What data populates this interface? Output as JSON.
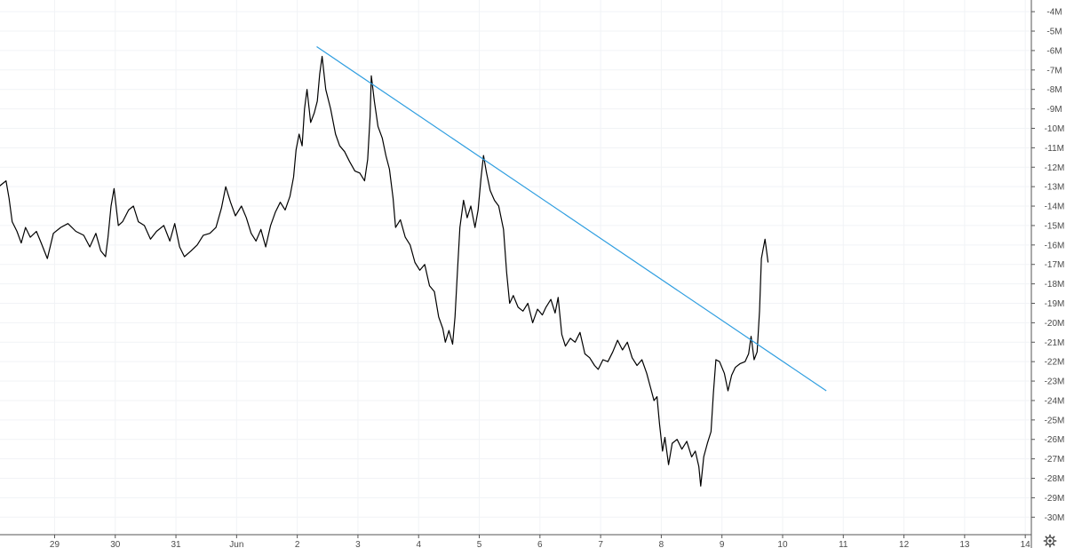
{
  "chart_data": {
    "type": "line",
    "title": "",
    "xlabel": "",
    "ylabel": "",
    "x_ticks": [
      {
        "label": "29",
        "t": 0
      },
      {
        "label": "30",
        "t": 1
      },
      {
        "label": "31",
        "t": 2
      },
      {
        "label": "Jun",
        "t": 3
      },
      {
        "label": "2",
        "t": 4
      },
      {
        "label": "3",
        "t": 5
      },
      {
        "label": "4",
        "t": 6
      },
      {
        "label": "5",
        "t": 7
      },
      {
        "label": "6",
        "t": 8
      },
      {
        "label": "7",
        "t": 9
      },
      {
        "label": "8",
        "t": 10
      },
      {
        "label": "9",
        "t": 11
      },
      {
        "label": "10",
        "t": 12
      },
      {
        "label": "11",
        "t": 13
      },
      {
        "label": "12",
        "t": 14
      },
      {
        "label": "13",
        "t": 15
      },
      {
        "label": "14",
        "t": 16
      }
    ],
    "xlim": [
      -0.9,
      16.1
    ],
    "y_ticks": [
      -4,
      -5,
      -6,
      -7,
      -8,
      -9,
      -10,
      -11,
      -12,
      -13,
      -14,
      -15,
      -16,
      -17,
      -18,
      -19,
      -20,
      -21,
      -22,
      -23,
      -24,
      -25,
      -26,
      -27,
      -28,
      -29,
      -30
    ],
    "y_tick_labels": [
      "-4M",
      "-5M",
      "-6M",
      "-7M",
      "-8M",
      "-9M",
      "-10M",
      "-11M",
      "-12M",
      "-13M",
      "-14M",
      "-15M",
      "-16M",
      "-17M",
      "-18M",
      "-19M",
      "-20M",
      "-21M",
      "-22M",
      "-23M",
      "-24M",
      "-25M",
      "-26M",
      "-27M",
      "-28M",
      "-29M",
      "-30M"
    ],
    "ylim": [
      -30.9,
      -3.4
    ],
    "grid": true,
    "series": [
      {
        "color": "#000000",
        "points": [
          [
            -0.92,
            -13.0
          ],
          [
            -0.8,
            -12.7
          ],
          [
            -0.75,
            -13.6
          ],
          [
            -0.7,
            -14.8
          ],
          [
            -0.62,
            -15.3
          ],
          [
            -0.55,
            -15.9
          ],
          [
            -0.48,
            -15.1
          ],
          [
            -0.4,
            -15.6
          ],
          [
            -0.3,
            -15.3
          ],
          [
            -0.22,
            -15.9
          ],
          [
            -0.12,
            -16.7
          ],
          [
            -0.02,
            -15.4
          ],
          [
            0.1,
            -15.1
          ],
          [
            0.22,
            -14.9
          ],
          [
            0.35,
            -15.3
          ],
          [
            0.48,
            -15.5
          ],
          [
            0.58,
            -16.1
          ],
          [
            0.68,
            -15.4
          ],
          [
            0.76,
            -16.3
          ],
          [
            0.84,
            -16.6
          ],
          [
            0.88,
            -15.6
          ],
          [
            0.93,
            -14.0
          ],
          [
            0.98,
            -13.1
          ],
          [
            1.05,
            -15.0
          ],
          [
            1.12,
            -14.8
          ],
          [
            1.22,
            -14.2
          ],
          [
            1.3,
            -14.0
          ],
          [
            1.38,
            -14.8
          ],
          [
            1.48,
            -15.0
          ],
          [
            1.58,
            -15.7
          ],
          [
            1.68,
            -15.3
          ],
          [
            1.8,
            -15.0
          ],
          [
            1.9,
            -15.8
          ],
          [
            1.98,
            -14.9
          ],
          [
            2.06,
            -16.1
          ],
          [
            2.14,
            -16.6
          ],
          [
            2.25,
            -16.3
          ],
          [
            2.35,
            -16.0
          ],
          [
            2.45,
            -15.5
          ],
          [
            2.56,
            -15.4
          ],
          [
            2.66,
            -15.1
          ],
          [
            2.75,
            -14.1
          ],
          [
            2.82,
            -13.0
          ],
          [
            2.9,
            -13.8
          ],
          [
            2.98,
            -14.5
          ],
          [
            3.08,
            -14.0
          ],
          [
            3.16,
            -14.6
          ],
          [
            3.24,
            -15.4
          ],
          [
            3.32,
            -15.8
          ],
          [
            3.4,
            -15.2
          ],
          [
            3.48,
            -16.1
          ],
          [
            3.56,
            -15.0
          ],
          [
            3.64,
            -14.3
          ],
          [
            3.72,
            -13.8
          ],
          [
            3.8,
            -14.2
          ],
          [
            3.88,
            -13.5
          ],
          [
            3.94,
            -12.5
          ],
          [
            3.98,
            -11.1
          ],
          [
            4.03,
            -10.3
          ],
          [
            4.08,
            -10.9
          ],
          [
            4.12,
            -9.0
          ],
          [
            4.16,
            -8.0
          ],
          [
            4.22,
            -9.7
          ],
          [
            4.28,
            -9.2
          ],
          [
            4.33,
            -8.6
          ],
          [
            4.37,
            -7.2
          ],
          [
            4.41,
            -6.3
          ],
          [
            4.47,
            -8.0
          ],
          [
            4.55,
            -9.0
          ],
          [
            4.63,
            -10.3
          ],
          [
            4.7,
            -10.9
          ],
          [
            4.78,
            -11.2
          ],
          [
            4.86,
            -11.7
          ],
          [
            4.95,
            -12.2
          ],
          [
            5.03,
            -12.3
          ],
          [
            5.11,
            -12.7
          ],
          [
            5.16,
            -11.6
          ],
          [
            5.2,
            -9.4
          ],
          [
            5.22,
            -7.3
          ],
          [
            5.27,
            -8.6
          ],
          [
            5.33,
            -9.9
          ],
          [
            5.4,
            -10.5
          ],
          [
            5.46,
            -11.4
          ],
          [
            5.52,
            -12.1
          ],
          [
            5.58,
            -13.6
          ],
          [
            5.62,
            -15.1
          ],
          [
            5.7,
            -14.7
          ],
          [
            5.78,
            -15.6
          ],
          [
            5.86,
            -16.0
          ],
          [
            5.94,
            -16.9
          ],
          [
            6.02,
            -17.3
          ],
          [
            6.1,
            -17.0
          ],
          [
            6.18,
            -18.1
          ],
          [
            6.26,
            -18.4
          ],
          [
            6.33,
            -19.7
          ],
          [
            6.4,
            -20.3
          ],
          [
            6.44,
            -21.0
          ],
          [
            6.5,
            -20.4
          ],
          [
            6.56,
            -21.1
          ],
          [
            6.6,
            -19.7
          ],
          [
            6.64,
            -17.4
          ],
          [
            6.68,
            -15.1
          ],
          [
            6.74,
            -13.7
          ],
          [
            6.8,
            -14.6
          ],
          [
            6.86,
            -14.0
          ],
          [
            6.93,
            -15.1
          ],
          [
            6.98,
            -14.2
          ],
          [
            7.03,
            -12.5
          ],
          [
            7.07,
            -11.4
          ],
          [
            7.12,
            -12.3
          ],
          [
            7.18,
            -13.2
          ],
          [
            7.25,
            -13.7
          ],
          [
            7.32,
            -14.0
          ],
          [
            7.4,
            -15.2
          ],
          [
            7.45,
            -17.4
          ],
          [
            7.5,
            -19.0
          ],
          [
            7.56,
            -18.6
          ],
          [
            7.64,
            -19.2
          ],
          [
            7.72,
            -19.4
          ],
          [
            7.8,
            -19.0
          ],
          [
            7.88,
            -20.0
          ],
          [
            7.96,
            -19.3
          ],
          [
            8.04,
            -19.6
          ],
          [
            8.1,
            -19.2
          ],
          [
            8.18,
            -18.8
          ],
          [
            8.25,
            -19.5
          ],
          [
            8.3,
            -18.7
          ],
          [
            8.36,
            -20.6
          ],
          [
            8.42,
            -21.2
          ],
          [
            8.5,
            -20.8
          ],
          [
            8.58,
            -21.0
          ],
          [
            8.66,
            -20.5
          ],
          [
            8.74,
            -21.6
          ],
          [
            8.82,
            -21.8
          ],
          [
            8.9,
            -22.2
          ],
          [
            8.96,
            -22.4
          ],
          [
            9.04,
            -21.9
          ],
          [
            9.12,
            -22.0
          ],
          [
            9.2,
            -21.5
          ],
          [
            9.28,
            -20.9
          ],
          [
            9.36,
            -21.4
          ],
          [
            9.44,
            -21.0
          ],
          [
            9.52,
            -21.8
          ],
          [
            9.6,
            -22.2
          ],
          [
            9.68,
            -21.9
          ],
          [
            9.76,
            -22.6
          ],
          [
            9.82,
            -23.3
          ],
          [
            9.88,
            -24.0
          ],
          [
            9.93,
            -23.8
          ],
          [
            9.97,
            -25.2
          ],
          [
            10.02,
            -26.6
          ],
          [
            10.06,
            -25.9
          ],
          [
            10.12,
            -27.3
          ],
          [
            10.18,
            -26.2
          ],
          [
            10.26,
            -26.0
          ],
          [
            10.34,
            -26.5
          ],
          [
            10.42,
            -26.1
          ],
          [
            10.5,
            -26.9
          ],
          [
            10.56,
            -26.6
          ],
          [
            10.62,
            -27.4
          ],
          [
            10.65,
            -28.4
          ],
          [
            10.7,
            -26.9
          ],
          [
            10.76,
            -26.2
          ],
          [
            10.82,
            -25.6
          ],
          [
            10.86,
            -23.6
          ],
          [
            10.9,
            -21.9
          ],
          [
            10.96,
            -22.0
          ],
          [
            11.04,
            -22.6
          ],
          [
            11.1,
            -23.5
          ],
          [
            11.16,
            -22.7
          ],
          [
            11.22,
            -22.3
          ],
          [
            11.3,
            -22.1
          ],
          [
            11.38,
            -22.0
          ],
          [
            11.44,
            -21.6
          ],
          [
            11.48,
            -20.7
          ],
          [
            11.53,
            -21.9
          ],
          [
            11.58,
            -21.5
          ],
          [
            11.62,
            -19.4
          ],
          [
            11.65,
            -16.7
          ],
          [
            11.68,
            -16.2
          ],
          [
            11.71,
            -15.7
          ],
          [
            11.74,
            -16.4
          ],
          [
            11.76,
            -16.9
          ]
        ]
      }
    ],
    "trendline": {
      "color": "#2f9ee0",
      "start": [
        4.32,
        -5.8
      ],
      "end": [
        12.72,
        -23.5
      ]
    }
  },
  "settings_icon": "gear-icon"
}
